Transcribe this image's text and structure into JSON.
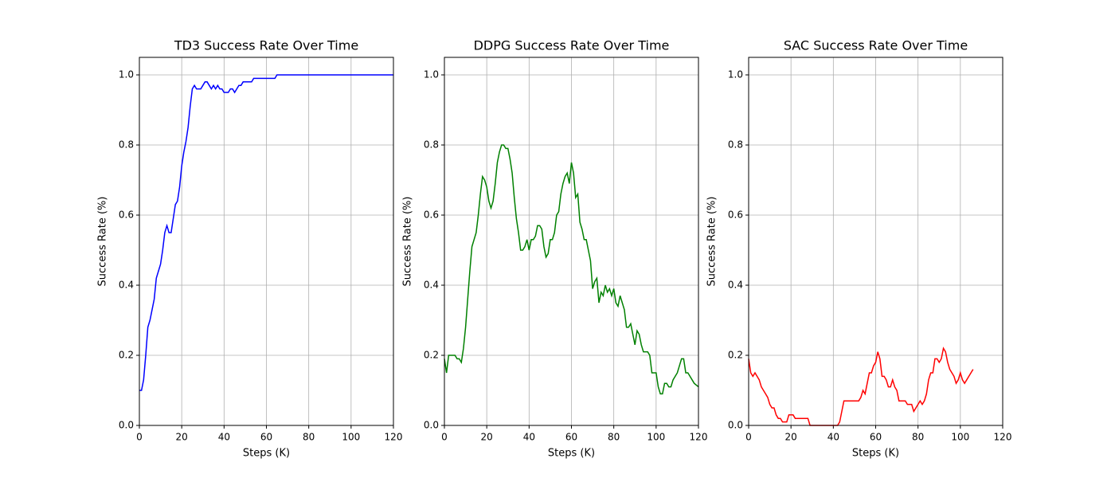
{
  "chart_data": [
    {
      "type": "line",
      "title": "TD3 Success Rate Over Time",
      "xlabel": "Steps (K)",
      "ylabel": "Success Rate (%)",
      "color": "#0000ff",
      "grid": true,
      "xlim": [
        0,
        120
      ],
      "ylim": [
        0,
        1.05
      ],
      "xticks": [
        0,
        20,
        40,
        60,
        80,
        100,
        120
      ],
      "yticks": [
        {
          "value": 0,
          "label": "0.0"
        },
        0.2,
        0.4,
        0.6,
        0.8,
        {
          "value": 1,
          "label": "1.0"
        }
      ],
      "x": [
        0,
        1,
        2,
        3,
        4,
        5,
        6,
        7,
        8,
        9,
        10,
        11,
        12,
        13,
        14,
        15,
        16,
        17,
        18,
        19,
        20,
        21,
        22,
        23,
        24,
        25,
        26,
        27,
        28,
        29,
        30,
        31,
        32,
        33,
        34,
        35,
        36,
        37,
        38,
        39,
        40,
        42,
        43,
        44,
        45,
        46,
        47,
        48,
        49,
        52,
        53,
        54,
        64,
        65,
        120
      ],
      "values": [
        0.1,
        0.1,
        0.13,
        0.2,
        0.28,
        0.3,
        0.33,
        0.36,
        0.42,
        0.44,
        0.46,
        0.5,
        0.55,
        0.57,
        0.55,
        0.55,
        0.59,
        0.63,
        0.64,
        0.68,
        0.74,
        0.78,
        0.81,
        0.85,
        0.91,
        0.96,
        0.97,
        0.96,
        0.96,
        0.96,
        0.97,
        0.98,
        0.98,
        0.97,
        0.96,
        0.97,
        0.96,
        0.97,
        0.96,
        0.96,
        0.95,
        0.95,
        0.96,
        0.96,
        0.95,
        0.96,
        0.97,
        0.97,
        0.98,
        0.98,
        0.98,
        0.99,
        0.99,
        1.0,
        1.0
      ]
    },
    {
      "type": "line",
      "title": "DDPG Success Rate Over Time",
      "xlabel": "Steps (K)",
      "ylabel": "Success Rate (%)",
      "color": "#008000",
      "grid": true,
      "xlim": [
        0,
        120
      ],
      "ylim": [
        0,
        1.05
      ],
      "xticks": [
        0,
        20,
        40,
        60,
        80,
        100,
        120
      ],
      "yticks": [
        {
          "value": 0,
          "label": "0.0"
        },
        0.2,
        0.4,
        0.6,
        0.8,
        {
          "value": 1,
          "label": "1.0"
        }
      ],
      "x": [
        0,
        1,
        2,
        5,
        6,
        7,
        8,
        9,
        10,
        11,
        12,
        13,
        15,
        16,
        17,
        18,
        19,
        20,
        21,
        22,
        23,
        24,
        25,
        26,
        27,
        28,
        29,
        30,
        31,
        32,
        33,
        34,
        35,
        36,
        37,
        38,
        39,
        40,
        41,
        42,
        43,
        44,
        45,
        46,
        47,
        48,
        49,
        50,
        51,
        52,
        53,
        54,
        55,
        56,
        57,
        58,
        59,
        60,
        61,
        62,
        63,
        64,
        65,
        66,
        67,
        68,
        69,
        70,
        71,
        72,
        73,
        74,
        75,
        76,
        77,
        78,
        79,
        80,
        81,
        82,
        83,
        84,
        85,
        86,
        87,
        88,
        89,
        90,
        91,
        92,
        93,
        94,
        96,
        97,
        98,
        100,
        101,
        102,
        103,
        104,
        105,
        106,
        107,
        108,
        110,
        111,
        112,
        113,
        114,
        115,
        116,
        118,
        120
      ],
      "values": [
        0.19,
        0.15,
        0.2,
        0.2,
        0.19,
        0.19,
        0.18,
        0.22,
        0.28,
        0.36,
        0.44,
        0.51,
        0.55,
        0.6,
        0.66,
        0.71,
        0.7,
        0.68,
        0.64,
        0.62,
        0.64,
        0.69,
        0.75,
        0.78,
        0.8,
        0.8,
        0.79,
        0.79,
        0.76,
        0.72,
        0.65,
        0.59,
        0.55,
        0.5,
        0.5,
        0.51,
        0.53,
        0.5,
        0.53,
        0.53,
        0.54,
        0.57,
        0.57,
        0.56,
        0.51,
        0.48,
        0.49,
        0.53,
        0.53,
        0.55,
        0.6,
        0.61,
        0.66,
        0.69,
        0.71,
        0.72,
        0.69,
        0.75,
        0.72,
        0.65,
        0.66,
        0.58,
        0.56,
        0.53,
        0.53,
        0.5,
        0.47,
        0.39,
        0.41,
        0.42,
        0.35,
        0.38,
        0.37,
        0.4,
        0.38,
        0.39,
        0.37,
        0.39,
        0.35,
        0.34,
        0.37,
        0.35,
        0.33,
        0.28,
        0.28,
        0.29,
        0.26,
        0.23,
        0.27,
        0.26,
        0.23,
        0.21,
        0.21,
        0.2,
        0.15,
        0.15,
        0.11,
        0.09,
        0.09,
        0.12,
        0.12,
        0.11,
        0.11,
        0.13,
        0.15,
        0.17,
        0.19,
        0.19,
        0.15,
        0.15,
        0.14,
        0.12,
        0.11
      ]
    },
    {
      "type": "line",
      "title": "SAC Success Rate Over Time",
      "xlabel": "Steps (K)",
      "ylabel": "Success Rate (%)",
      "color": "#ff0000",
      "grid": true,
      "xlim": [
        0,
        120
      ],
      "ylim": [
        0,
        1.05
      ],
      "xticks": [
        0,
        20,
        40,
        60,
        80,
        100,
        120
      ],
      "yticks": [
        {
          "value": 0,
          "label": "0.0"
        },
        0.2,
        0.4,
        0.6,
        0.8,
        {
          "value": 1,
          "label": "1.0"
        }
      ],
      "x": [
        0,
        1,
        2,
        3,
        4,
        5,
        6,
        7,
        8,
        9,
        10,
        11,
        12,
        13,
        14,
        15,
        16,
        18,
        19,
        21,
        22,
        28,
        29,
        42,
        43,
        44,
        45,
        52,
        53,
        54,
        55,
        56,
        57,
        58,
        59,
        60,
        61,
        62,
        63,
        64,
        65,
        66,
        67,
        68,
        69,
        70,
        71,
        74,
        75,
        77,
        78,
        79,
        80,
        81,
        82,
        83,
        84,
        85,
        86,
        87,
        88,
        89,
        90,
        91,
        92,
        93,
        94,
        95,
        96,
        97,
        98,
        99,
        100,
        101,
        102,
        103,
        104,
        106
      ],
      "values": [
        0.19,
        0.15,
        0.14,
        0.15,
        0.14,
        0.13,
        0.11,
        0.1,
        0.09,
        0.08,
        0.06,
        0.05,
        0.05,
        0.03,
        0.02,
        0.02,
        0.01,
        0.01,
        0.03,
        0.03,
        0.02,
        0.02,
        0.0,
        0.0,
        0.01,
        0.04,
        0.07,
        0.07,
        0.08,
        0.1,
        0.09,
        0.12,
        0.15,
        0.15,
        0.17,
        0.18,
        0.21,
        0.19,
        0.14,
        0.14,
        0.13,
        0.11,
        0.11,
        0.13,
        0.11,
        0.1,
        0.07,
        0.07,
        0.06,
        0.06,
        0.04,
        0.05,
        0.06,
        0.07,
        0.06,
        0.07,
        0.09,
        0.13,
        0.15,
        0.15,
        0.19,
        0.19,
        0.18,
        0.19,
        0.22,
        0.21,
        0.18,
        0.16,
        0.15,
        0.14,
        0.12,
        0.13,
        0.15,
        0.13,
        0.12,
        0.13,
        0.14,
        0.16
      ]
    }
  ]
}
